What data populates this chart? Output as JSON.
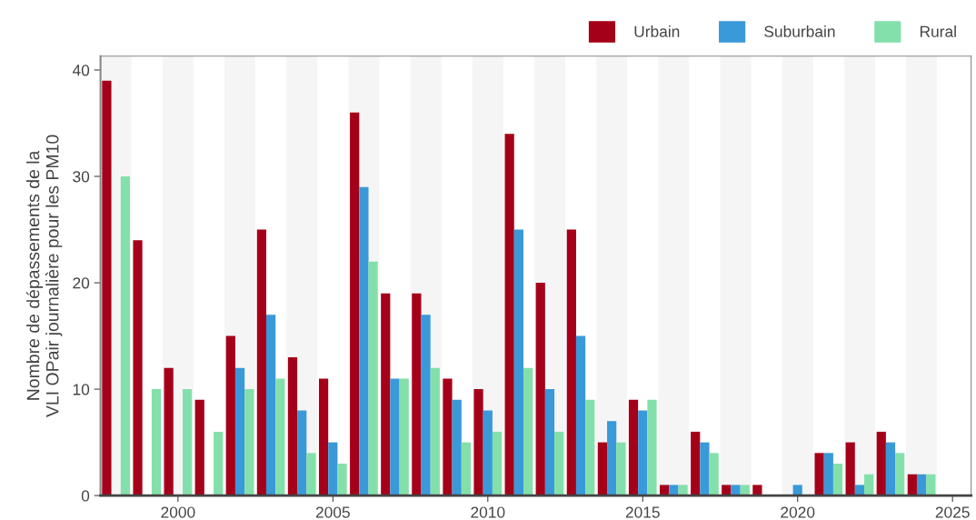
{
  "chart_data": {
    "type": "bar",
    "ylabel": "Nombre de dépassements de la\nVLI OPair journalière pour les PM10",
    "x": [
      1998,
      1999,
      2000,
      2001,
      2002,
      2003,
      2004,
      2005,
      2006,
      2007,
      2008,
      2009,
      2010,
      2011,
      2012,
      2013,
      2014,
      2015,
      2016,
      2017,
      2018,
      2019,
      2020,
      2021,
      2022,
      2023,
      2024
    ],
    "series": [
      {
        "name": "Urbain",
        "color": "#a50019",
        "values": [
          39,
          24,
          12,
          9,
          15,
          25,
          13,
          11,
          36,
          19,
          19,
          11,
          10,
          34,
          20,
          25,
          5,
          9,
          1,
          6,
          1,
          1,
          null,
          4,
          5,
          6,
          2
        ]
      },
      {
        "name": "Suburbain",
        "color": "#3a99d9",
        "values": [
          null,
          null,
          null,
          null,
          12,
          17,
          8,
          5,
          29,
          11,
          17,
          9,
          8,
          25,
          10,
          15,
          7,
          8,
          1,
          5,
          1,
          null,
          1,
          4,
          1,
          5,
          2
        ]
      },
      {
        "name": "Rural",
        "color": "#84e0aa",
        "values": [
          30,
          10,
          10,
          6,
          10,
          11,
          4,
          3,
          22,
          11,
          12,
          5,
          6,
          12,
          6,
          9,
          5,
          9,
          1,
          4,
          1,
          null,
          null,
          3,
          2,
          4,
          2
        ]
      }
    ],
    "xlim": [
      1997.5,
      2025.6
    ],
    "xticks": [
      2000,
      2005,
      2010,
      2015,
      2020,
      2025
    ],
    "ylim": [
      0,
      41.3
    ],
    "yticks": [
      0,
      10,
      20,
      30,
      40
    ],
    "bands": [
      {
        "axis": "x",
        "from": 1997.5,
        "to": 1998.5,
        "color": "#f5f5f5"
      },
      {
        "axis": "x",
        "from": 1999.5,
        "to": 2000.5,
        "color": "#f5f5f5"
      },
      {
        "axis": "x",
        "from": 2001.5,
        "to": 2002.5,
        "color": "#f5f5f5"
      },
      {
        "axis": "x",
        "from": 2003.5,
        "to": 2004.5,
        "color": "#f5f5f5"
      },
      {
        "axis": "x",
        "from": 2005.5,
        "to": 2006.5,
        "color": "#f5f5f5"
      },
      {
        "axis": "x",
        "from": 2007.5,
        "to": 2008.5,
        "color": "#f5f5f5"
      },
      {
        "axis": "x",
        "from": 2009.5,
        "to": 2010.5,
        "color": "#f5f5f5"
      },
      {
        "axis": "x",
        "from": 2011.5,
        "to": 2012.5,
        "color": "#f5f5f5"
      },
      {
        "axis": "x",
        "from": 2013.5,
        "to": 2014.5,
        "color": "#f5f5f5"
      },
      {
        "axis": "x",
        "from": 2015.5,
        "to": 2016.5,
        "color": "#f5f5f5"
      },
      {
        "axis": "x",
        "from": 2017.5,
        "to": 2018.5,
        "color": "#f5f5f5"
      },
      {
        "axis": "x",
        "from": 2019.5,
        "to": 2020.5,
        "color": "#f5f5f5"
      },
      {
        "axis": "x",
        "from": 2021.5,
        "to": 2022.5,
        "color": "#f5f5f5"
      },
      {
        "axis": "x",
        "from": 2023.5,
        "to": 2024.5,
        "color": "#f5f5f5"
      }
    ],
    "grid": false,
    "legend": "top right"
  }
}
